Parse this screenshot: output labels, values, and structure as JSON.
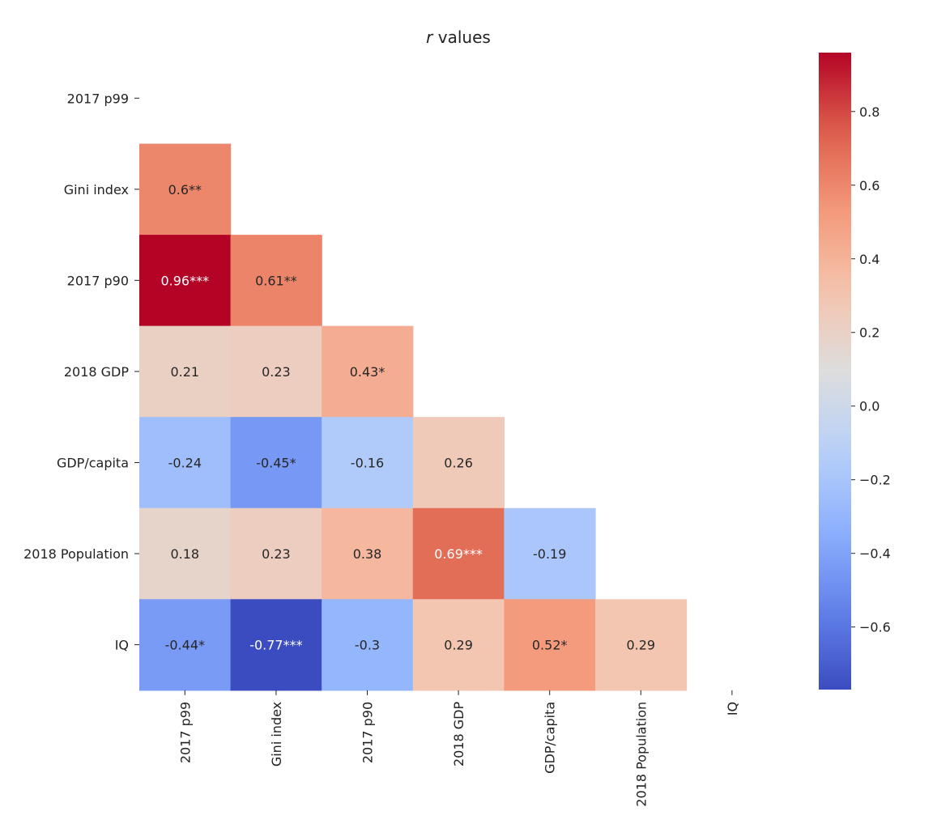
{
  "chart_data": {
    "type": "heatmap",
    "title_italic": "r",
    "title_rest": " values",
    "row_labels": [
      "2017 p99",
      "Gini index",
      "2017 p90",
      "2018 GDP",
      "GDP/capita",
      "2018 Population",
      "IQ"
    ],
    "col_labels": [
      "2017 p99",
      "Gini index",
      "2017 p90",
      "2018 GDP",
      "GDP/capita",
      "2018 Population",
      "IQ"
    ],
    "values": [
      [
        null,
        null,
        null,
        null,
        null,
        null,
        null
      ],
      [
        0.6,
        null,
        null,
        null,
        null,
        null,
        null
      ],
      [
        0.96,
        0.61,
        null,
        null,
        null,
        null,
        null
      ],
      [
        0.21,
        0.23,
        0.43,
        null,
        null,
        null,
        null
      ],
      [
        -0.24,
        -0.45,
        -0.16,
        0.26,
        null,
        null,
        null
      ],
      [
        0.18,
        0.23,
        0.38,
        0.69,
        -0.19,
        null,
        null
      ],
      [
        -0.44,
        -0.77,
        -0.3,
        0.29,
        0.52,
        0.29,
        null
      ]
    ],
    "annotations": [
      [
        null,
        null,
        null,
        null,
        null,
        null,
        null
      ],
      [
        "0.6**",
        null,
        null,
        null,
        null,
        null,
        null
      ],
      [
        "0.96***",
        "0.61**",
        null,
        null,
        null,
        null,
        null
      ],
      [
        "0.21",
        "0.23",
        "0.43*",
        null,
        null,
        null,
        null
      ],
      [
        "-0.24",
        "-0.45*",
        "-0.16",
        "0.26",
        null,
        null,
        null
      ],
      [
        "0.18",
        "0.23",
        "0.38",
        "0.69***",
        "-0.19",
        null,
        null
      ],
      [
        "-0.44*",
        "-0.77***",
        "-0.3",
        "0.29",
        "0.52*",
        "0.29",
        null
      ]
    ],
    "colormap": "coolwarm",
    "vmin": -0.77,
    "vmax": 0.96,
    "colorbar_ticks": [
      0.8,
      0.6,
      0.4,
      0.2,
      0.0,
      -0.2,
      -0.4,
      -0.6
    ],
    "colorbar_tick_labels": [
      "0.8",
      "0.6",
      "0.4",
      "0.2",
      "0.0",
      "−0.2",
      "−0.4",
      "−0.6"
    ],
    "colors": {
      "low": "#3b4cc0",
      "mid": "#dddcdc",
      "high": "#b40426",
      "text_dark": "#262626",
      "text_light": "#ffffff"
    }
  }
}
